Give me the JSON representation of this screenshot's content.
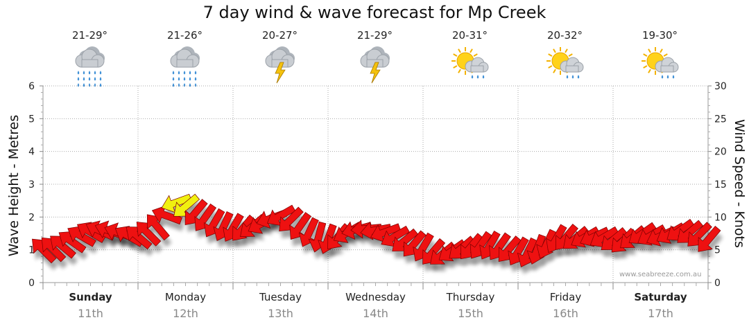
{
  "title": "7 day wind & wave forecast for Mp Creek",
  "watermark": "www.seabreeze.com.au",
  "forecasts": [
    {
      "temp": "21-29°",
      "icon": "rain-icon"
    },
    {
      "temp": "21-26°",
      "icon": "rain-icon"
    },
    {
      "temp": "20-27°",
      "icon": "thunderstorm-icon"
    },
    {
      "temp": "21-29°",
      "icon": "thunderstorm-icon"
    },
    {
      "temp": "20-31°",
      "icon": "sun-shower-icon"
    },
    {
      "temp": "20-32°",
      "icon": "sun-shower-icon"
    },
    {
      "temp": "19-30°",
      "icon": "sun-shower-icon"
    }
  ],
  "days": [
    {
      "name": "Sunday",
      "date": "11th",
      "bold": true
    },
    {
      "name": "Monday",
      "date": "12th",
      "bold": false
    },
    {
      "name": "Tuesday",
      "date": "13th",
      "bold": false
    },
    {
      "name": "Wednesday",
      "date": "14th",
      "bold": false
    },
    {
      "name": "Thursday",
      "date": "15th",
      "bold": false
    },
    {
      "name": "Friday",
      "date": "16th",
      "bold": false
    },
    {
      "name": "Saturday",
      "date": "17th",
      "bold": true
    }
  ],
  "chart_data": {
    "type": "line",
    "title": "7 day wind & wave forecast for Mp Creek",
    "ylabel": "Wave Height - Metres",
    "y2label": "Wind Speed - Knots",
    "ylim": [
      0,
      6
    ],
    "y2lim": [
      0,
      30
    ],
    "yticks": [
      "0",
      "1",
      "2",
      "3",
      "4",
      "5",
      "6"
    ],
    "y2ticks": [
      "0",
      "5",
      "10",
      "15",
      "20",
      "25",
      "30"
    ],
    "grid": true,
    "series": [
      {
        "kind": "wind-arrows",
        "colors": {
          "normal": "#ee1111",
          "strong": "#f0f010"
        },
        "x_days": [
          0.0,
          0.1,
          0.2,
          0.3,
          0.4,
          0.5,
          0.6,
          0.7,
          0.8,
          0.9,
          1.0,
          1.1,
          1.2,
          1.3,
          1.4,
          1.5,
          1.6,
          1.7,
          1.8,
          1.9,
          2.0,
          2.1,
          2.2,
          2.3,
          2.4,
          2.5,
          2.6,
          2.7,
          2.8,
          2.9,
          3.0,
          3.1,
          3.2,
          3.3,
          3.4,
          3.5,
          3.6,
          3.7,
          3.8,
          3.9,
          4.0,
          4.1,
          4.2,
          4.3,
          4.4,
          4.5,
          4.6,
          4.7,
          4.8,
          4.9,
          5.0,
          5.1,
          5.2,
          5.3,
          5.4,
          5.5,
          5.6,
          5.7,
          5.8,
          5.9,
          6.0,
          6.1,
          6.2,
          6.3,
          6.4,
          6.5,
          6.6,
          6.7,
          6.8,
          6.9,
          7.0
        ],
        "knots": [
          5.0,
          5.2,
          5.6,
          6.3,
          7.1,
          7.7,
          7.9,
          7.9,
          7.6,
          7.1,
          7.0,
          7.6,
          8.6,
          10.2,
          12.2,
          11.6,
          10.6,
          9.8,
          9.0,
          8.5,
          8.3,
          8.2,
          8.5,
          9.0,
          9.8,
          10.2,
          9.5,
          8.5,
          7.6,
          6.9,
          6.6,
          6.9,
          7.6,
          8.1,
          8.2,
          8.0,
          7.7,
          7.0,
          6.3,
          5.8,
          5.3,
          4.6,
          4.3,
          4.8,
          5.2,
          5.4,
          5.6,
          5.6,
          5.4,
          5.0,
          4.7,
          4.5,
          5.0,
          5.8,
          6.6,
          6.8,
          6.7,
          6.9,
          7.0,
          6.9,
          6.5,
          6.3,
          6.8,
          7.4,
          7.2,
          7.1,
          7.5,
          7.9,
          7.6,
          7.2,
          6.5
        ],
        "direction_deg": [
          225,
          225,
          220,
          215,
          210,
          210,
          205,
          200,
          200,
          210,
          220,
          225,
          230,
          200,
          160,
          140,
          130,
          125,
          120,
          115,
          120,
          130,
          140,
          150,
          160,
          150,
          135,
          125,
          115,
          105,
          110,
          130,
          150,
          165,
          175,
          170,
          160,
          150,
          140,
          130,
          120,
          130,
          140,
          145,
          140,
          130,
          125,
          120,
          125,
          130,
          120,
          115,
          110,
          115,
          120,
          130,
          140,
          150,
          155,
          150,
          140,
          135,
          140,
          145,
          150,
          155,
          150,
          145,
          140,
          135,
          130
        ]
      }
    ]
  }
}
